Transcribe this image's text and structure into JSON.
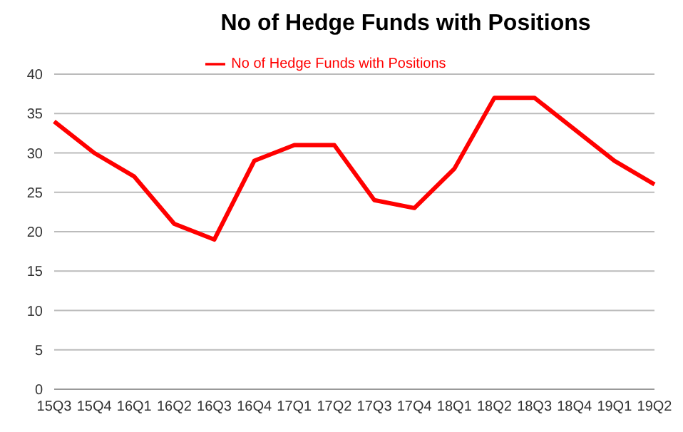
{
  "chart_data": {
    "type": "line",
    "title": "No of Hedge Funds with Positions",
    "categories": [
      "15Q3",
      "15Q4",
      "16Q1",
      "16Q2",
      "16Q3",
      "16Q4",
      "17Q1",
      "17Q2",
      "17Q3",
      "17Q4",
      "18Q1",
      "18Q2",
      "18Q3",
      "18Q4",
      "19Q1",
      "19Q2"
    ],
    "series": [
      {
        "name": "No of Hedge Funds with Positions",
        "color": "#ff0000",
        "values": [
          34,
          30,
          27,
          21,
          19,
          29,
          31,
          31,
          24,
          23,
          28,
          37,
          37,
          33,
          29,
          26
        ]
      }
    ],
    "ylim": [
      0,
      40
    ],
    "yticks": [
      0,
      5,
      10,
      15,
      20,
      25,
      30,
      35,
      40
    ],
    "grid": "y",
    "legend": "top",
    "marker": "none",
    "line_style": "solid"
  }
}
